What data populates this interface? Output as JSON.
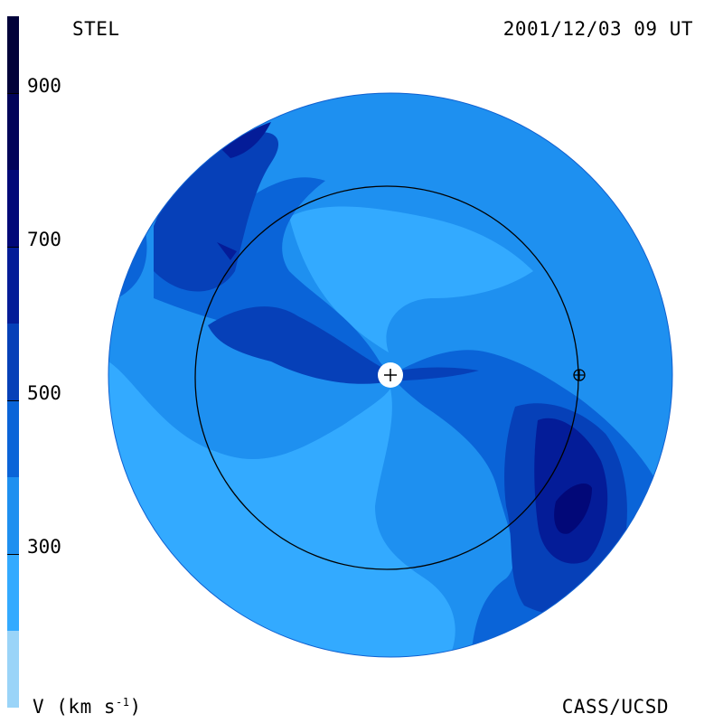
{
  "header": {
    "observatory": "STEL",
    "timestamp": "2001/12/03 09 UT"
  },
  "footer": {
    "credit": "CASS/UCSD",
    "units_prefix": "V (km s",
    "units_exp": "-1",
    "units_suffix": ")"
  },
  "colorbar": {
    "levels": [
      "#9ad4f8",
      "#33aaff",
      "#1e90f0",
      "#0a64d8",
      "#0640b8",
      "#041c98",
      "#020878",
      "#01045a",
      "#01023a"
    ],
    "ticks": [
      {
        "label": "900",
        "value": 900
      },
      {
        "label": "700",
        "value": 700
      },
      {
        "label": "500",
        "value": 500
      },
      {
        "label": "300",
        "value": 300
      }
    ],
    "range": [
      100,
      1000
    ]
  },
  "map": {
    "markers": [
      "sun-marker",
      "earth-orbit",
      "earth-marker"
    ]
  }
}
